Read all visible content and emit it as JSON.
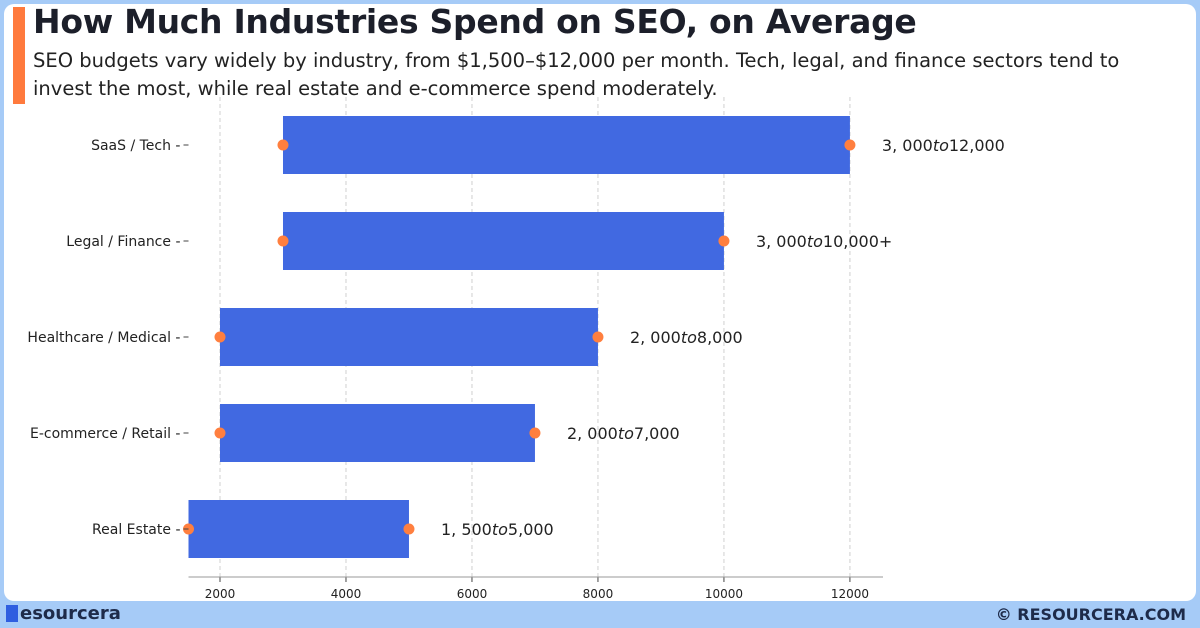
{
  "header": {
    "title": "How Much Industries Spend on SEO, on Average",
    "subtitle": "SEO budgets vary widely by industry, from $1,500–$12,000 per month. Tech, legal, and finance sectors tend to invest the most, while real estate and e-commerce spend moderately."
  },
  "footer": {
    "brand": "esourcera",
    "copyright": "© RESOURCERA.COM"
  },
  "colors": {
    "bar": "#4169e1",
    "endpoint": "#ff7f3f",
    "accent": "#ff7a3d",
    "background": "#a6cbf7"
  },
  "chart_data": {
    "type": "bar",
    "orientation": "horizontal",
    "subtype": "range",
    "categories": [
      "SaaS / Tech",
      "Legal / Finance",
      "Healthcare / Medical",
      "E-commerce / Retail",
      "Real Estate"
    ],
    "min": [
      3000,
      3000,
      2000,
      2000,
      1500
    ],
    "max": [
      12000,
      10000,
      8000,
      7000,
      5000
    ],
    "labels": [
      "3, 000to12,000",
      "3, 000to10,000+",
      "2, 000to8,000",
      "2, 000to7,000",
      "1, 500to5,000"
    ],
    "xticks": [
      2000,
      4000,
      6000,
      8000,
      10000,
      12000
    ],
    "xlim": [
      1500,
      12525
    ],
    "grid": "vertical dashed",
    "xlabel": "",
    "ylabel": ""
  }
}
